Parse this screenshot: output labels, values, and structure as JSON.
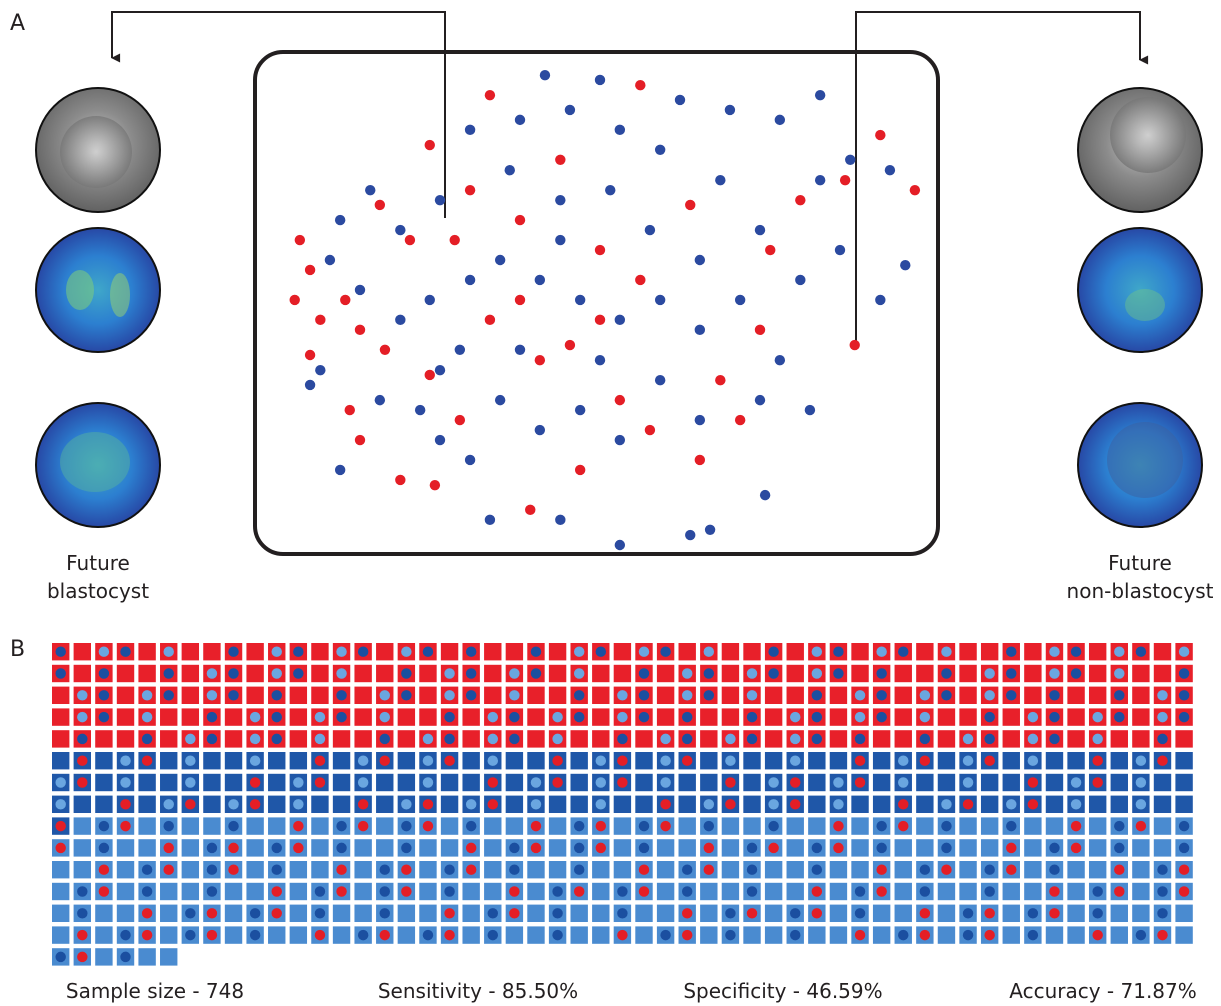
{
  "panel_a": {
    "label": "A",
    "left_caption": [
      "Future",
      "blastocyst"
    ],
    "right_caption": [
      "Future",
      "non-blastocyst"
    ],
    "chart_data": {
      "type": "scatter",
      "xlim": [
        0,
        100
      ],
      "ylim": [
        0,
        100
      ],
      "series": [
        {
          "color": "#e41e26",
          "x": [
            3.1,
            4.7,
            2.3,
            6.3,
            10.2,
            12.5,
            16.4,
            4.7,
            10.9,
            12.5,
            18.8,
            24.2,
            23.4,
            28.1,
            32.8,
            37.5,
            40.6,
            45.3,
            50.0,
            56.3,
            57.8,
            65.6,
            71.9,
            76.6,
            81.3,
            88.3,
            93.8,
            99.2,
            89.8,
            56.3,
            32.8,
            23.4,
            29.7,
            37.5,
            43.8,
            50.0,
            53.1,
            46.9,
            39.1,
            64.1,
            75.0,
            68.8,
            20.3,
            15.6,
            27.3
          ],
          "y": [
            64.2,
            57.9,
            51.6,
            47.4,
            51.6,
            45.3,
            41.1,
            40.0,
            28.4,
            22.1,
            13.7,
            12.6,
            35.8,
            26.3,
            47.4,
            51.6,
            38.9,
            42.1,
            47.4,
            55.8,
            24.2,
            17.9,
            26.3,
            62.1,
            72.6,
            76.8,
            86.3,
            74.7,
            42.1,
            96.8,
            94.7,
            84.2,
            74.7,
            68.4,
            81.1,
            62.1,
            30.5,
            15.8,
            7.4,
            71.6,
            45.3,
            34.7,
            64.2,
            71.6,
            64.2
          ]
        },
        {
          "color": "#2b4aa0",
          "x": [
            41.4,
            50.0,
            37.5,
            45.3,
            53.1,
            62.5,
            70.3,
            78.1,
            84.4,
            89.1,
            95.3,
            97.7,
            93.8,
            87.5,
            81.3,
            75.0,
            68.8,
            59.4,
            51.6,
            43.8,
            35.9,
            29.7,
            25.0,
            18.8,
            14.1,
            9.4,
            7.8,
            12.5,
            18.8,
            23.4,
            29.7,
            34.4,
            40.6,
            46.9,
            53.1,
            59.4,
            65.6,
            71.9,
            78.1,
            82.8,
            75.0,
            65.6,
            59.4,
            53.1,
            46.9,
            40.6,
            34.4,
            29.7,
            25.0,
            21.9,
            15.6,
            9.4,
            6.3,
            4.7,
            32.8,
            43.8,
            53.1,
            64.1,
            67.2,
            75.8,
            50.0,
            37.5,
            28.1,
            43.8,
            57.8,
            65.6,
            25.0,
            84.4
          ],
          "y": [
            98.9,
            97.9,
            89.5,
            91.6,
            87.4,
            93.7,
            91.6,
            89.5,
            94.7,
            81.1,
            78.9,
            58.9,
            51.6,
            62.1,
            55.8,
            66.3,
            76.8,
            83.2,
            74.7,
            72.6,
            78.9,
            87.4,
            72.6,
            66.3,
            74.7,
            68.4,
            60.0,
            53.7,
            47.4,
            51.6,
            55.8,
            60.0,
            55.8,
            51.6,
            47.4,
            51.6,
            45.3,
            51.6,
            38.9,
            28.4,
            30.5,
            26.3,
            34.7,
            22.1,
            28.4,
            24.2,
            30.5,
            17.9,
            22.1,
            28.4,
            30.5,
            15.8,
            36.8,
            33.7,
            5.3,
            5.3,
            0.0,
            2.1,
            3.2,
            10.5,
            38.9,
            41.1,
            41.1,
            64.2,
            66.3,
            60.0,
            36.8,
            76.8
          ]
        }
      ]
    }
  },
  "panel_b": {
    "label": "B",
    "grid": {
      "counts": [
        265,
        160,
        323
      ],
      "colors": [
        "#e8202a",
        "#1f57a8",
        "#4a8bd0"
      ]
    },
    "metrics": [
      "Sample size - 748",
      "Sensitivity - 85.50%",
      "Specificity - 46.59%",
      "Accuracy - 71.87%"
    ]
  }
}
